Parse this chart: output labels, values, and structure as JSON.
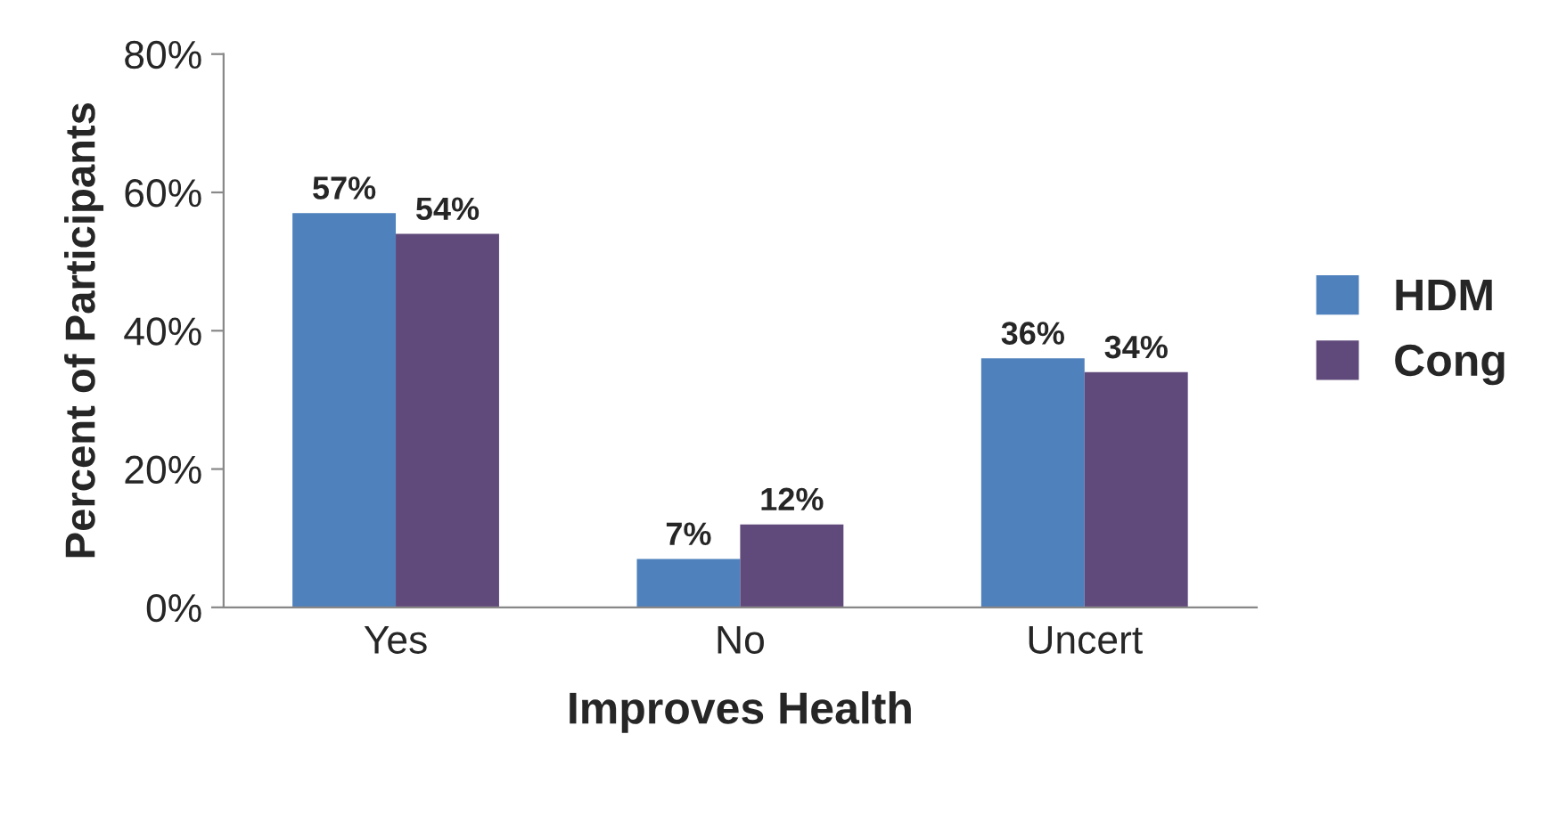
{
  "chart_data": {
    "type": "bar",
    "xlabel": "Improves Health",
    "ylabel": "Percent of Participants",
    "categories": [
      "Yes",
      "No",
      "Uncert"
    ],
    "series": [
      {
        "name": "HDM",
        "color": "#4f81bd",
        "values": [
          57,
          7,
          36
        ],
        "value_labels": [
          "57%",
          "7%",
          "36%"
        ]
      },
      {
        "name": "Cong",
        "color": "#604a7b",
        "values": [
          54,
          12,
          34
        ],
        "value_labels": [
          "54%",
          "12%",
          "34%"
        ]
      }
    ],
    "ylim": [
      0,
      80
    ],
    "yticks": [
      {
        "value": 0,
        "label": "0%"
      },
      {
        "value": 20,
        "label": "20%"
      },
      {
        "value": 40,
        "label": "40%"
      },
      {
        "value": 60,
        "label": "60%"
      },
      {
        "value": 80,
        "label": "80%"
      }
    ],
    "grid": false,
    "legend": "right"
  }
}
